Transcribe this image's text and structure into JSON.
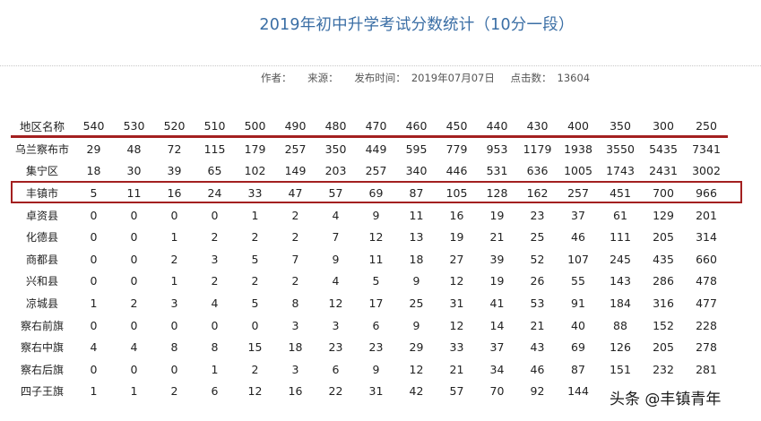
{
  "page": {
    "title": "2019年初中升学考试分数统计（10分一段）",
    "meta": {
      "author_label": "作者：",
      "source_label": "来源：",
      "published_label": "发布时间：",
      "published_value": "2019年07月07日",
      "clicks_label": "点击数：",
      "clicks_value": "13604"
    },
    "watermark": "头条 @丰镇青年"
  },
  "table": {
    "header": [
      "地区名称",
      "540",
      "530",
      "520",
      "510",
      "500",
      "490",
      "480",
      "470",
      "460",
      "450",
      "440",
      "430",
      "400",
      "350",
      "300",
      "250"
    ],
    "highlighted_region": "丰镇市",
    "rows": [
      {
        "region": "乌兰察布市",
        "values": [
          "29",
          "48",
          "72",
          "115",
          "179",
          "257",
          "350",
          "449",
          "595",
          "779",
          "953",
          "1179",
          "1938",
          "3550",
          "5435",
          "7341"
        ]
      },
      {
        "region": "集宁区",
        "values": [
          "18",
          "30",
          "39",
          "65",
          "102",
          "149",
          "203",
          "257",
          "340",
          "446",
          "531",
          "636",
          "1005",
          "1743",
          "2431",
          "3002"
        ]
      },
      {
        "region": "丰镇市",
        "values": [
          "5",
          "11",
          "16",
          "24",
          "33",
          "47",
          "57",
          "69",
          "87",
          "105",
          "128",
          "162",
          "257",
          "451",
          "700",
          "966"
        ]
      },
      {
        "region": "卓资县",
        "values": [
          "0",
          "0",
          "0",
          "0",
          "1",
          "2",
          "4",
          "9",
          "11",
          "16",
          "19",
          "23",
          "37",
          "61",
          "129",
          "201"
        ]
      },
      {
        "region": "化德县",
        "values": [
          "0",
          "0",
          "1",
          "2",
          "2",
          "2",
          "7",
          "12",
          "13",
          "19",
          "21",
          "25",
          "46",
          "111",
          "205",
          "314"
        ]
      },
      {
        "region": "商都县",
        "values": [
          "0",
          "0",
          "2",
          "3",
          "5",
          "7",
          "9",
          "11",
          "18",
          "27",
          "39",
          "52",
          "107",
          "245",
          "435",
          "660"
        ]
      },
      {
        "region": "兴和县",
        "values": [
          "0",
          "0",
          "1",
          "2",
          "2",
          "2",
          "4",
          "5",
          "9",
          "12",
          "19",
          "26",
          "55",
          "143",
          "286",
          "478"
        ]
      },
      {
        "region": "凉城县",
        "values": [
          "1",
          "2",
          "3",
          "4",
          "5",
          "8",
          "12",
          "17",
          "25",
          "31",
          "41",
          "53",
          "91",
          "184",
          "316",
          "477"
        ]
      },
      {
        "region": "察右前旗",
        "values": [
          "0",
          "0",
          "0",
          "0",
          "0",
          "3",
          "3",
          "6",
          "9",
          "12",
          "14",
          "21",
          "40",
          "88",
          "152",
          "228"
        ]
      },
      {
        "region": "察右中旗",
        "values": [
          "4",
          "4",
          "8",
          "8",
          "15",
          "18",
          "23",
          "23",
          "29",
          "33",
          "37",
          "43",
          "69",
          "126",
          "205",
          "278"
        ]
      },
      {
        "region": "察右后旗",
        "values": [
          "0",
          "0",
          "0",
          "1",
          "2",
          "3",
          "6",
          "9",
          "12",
          "21",
          "34",
          "46",
          "87",
          "151",
          "232",
          "281"
        ]
      },
      {
        "region": "四子王旗",
        "values": [
          "1",
          "1",
          "2",
          "6",
          "12",
          "16",
          "22",
          "31",
          "42",
          "57",
          "70",
          "92",
          "144",
          "",
          "",
          ""
        ]
      }
    ]
  },
  "colors": {
    "title": "#3a6ea5",
    "accent_red": "#a32020"
  }
}
